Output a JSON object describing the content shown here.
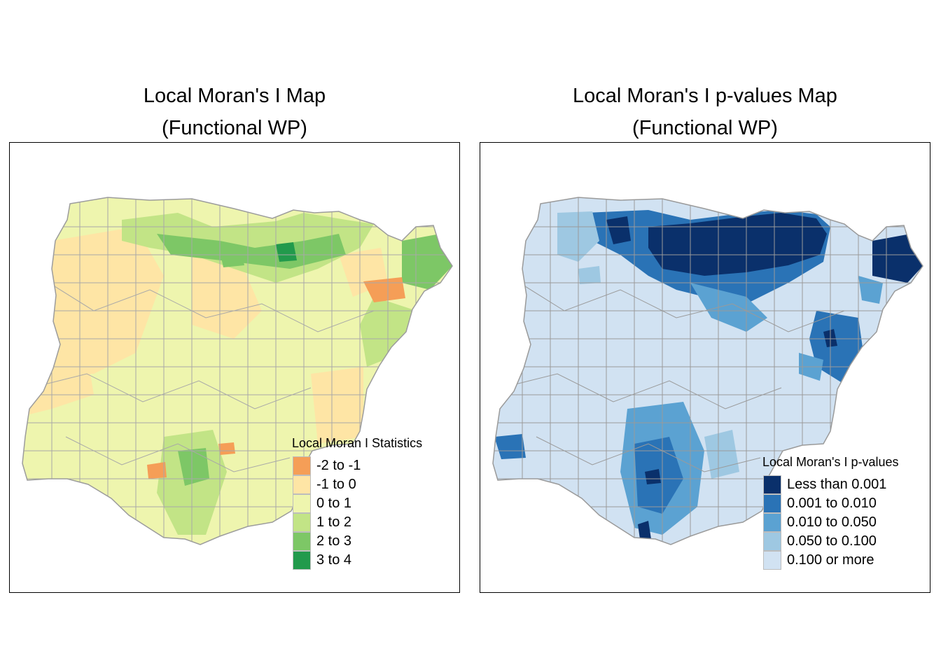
{
  "maps": [
    {
      "title_line1": "Local Moran's I Map",
      "title_line2": "(Functional WP)",
      "legend": {
        "title": "Local Moran I Statistics",
        "items": [
          {
            "label": "-2 to -1",
            "color": "#f59e57"
          },
          {
            "label": "-1 to 0",
            "color": "#fee5a5"
          },
          {
            "label": "0 to 1",
            "color": "#eef5ae"
          },
          {
            "label": "1 to 2",
            "color": "#c2e486"
          },
          {
            "label": "2 to 3",
            "color": "#7dc766"
          },
          {
            "label": "3 to 4",
            "color": "#229a4c"
          }
        ]
      },
      "base_color": "#eef5ae",
      "border_color": "#a8a8a8"
    },
    {
      "title_line1": "Local Moran's I p-values Map",
      "title_line2": "(Functional WP)",
      "legend": {
        "title": "Local Moran's I p-values",
        "items": [
          {
            "label": "Less than 0.001",
            "color": "#0a306b"
          },
          {
            "label": "0.001 to 0.010",
            "color": "#2a73b6"
          },
          {
            "label": "0.010 to 0.050",
            "color": "#5ba2d2"
          },
          {
            "label": "0.050 to 0.100",
            "color": "#9ec8e2"
          },
          {
            "label": "0.100 or more",
            "color": "#d1e2f2"
          }
        ]
      },
      "base_color": "#d1e2f2",
      "border_color": "#9a9a9a"
    }
  ]
}
